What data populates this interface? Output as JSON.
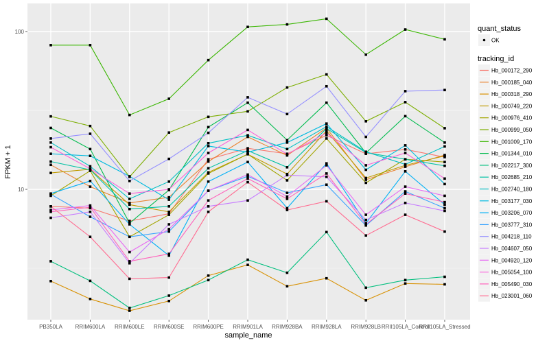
{
  "chart_data": {
    "type": "line",
    "title": "",
    "xlabel": "sample_name",
    "ylabel": "FPKM + 1",
    "yscale": "log10",
    "ylim": [
      1.45,
      140
    ],
    "yticks": [
      {
        "value": 10,
        "label": "10"
      },
      {
        "value": 100,
        "label": "100"
      }
    ],
    "grid": true,
    "categories": [
      "PB350LA",
      "RRIM600LA",
      "RRIM600LE",
      "RRIM600SE",
      "RRIM600PE",
      "RRIM901LA",
      "RRIM928BA",
      "RRIM928LA",
      "RRIM928LB",
      "RRII105LA_Control",
      "RRII105LA_Stressed"
    ],
    "legend_position": "right",
    "shape_legend": {
      "title": "quant_status",
      "items": [
        "OK"
      ]
    },
    "color_legend_title": "tracking_id",
    "series": [
      {
        "name": "Hb_000172_290",
        "color": "#F8766D",
        "values": [
          7.8,
          7.6,
          6.3,
          7.0,
          15.5,
          18.2,
          16.8,
          22.0,
          16.8,
          17.9,
          16.0
        ]
      },
      {
        "name": "Hb_000185_040",
        "color": "#EA8331",
        "values": [
          14.3,
          10.4,
          8.2,
          8.9,
          15.0,
          21.5,
          16.4,
          24.5,
          11.5,
          13.9,
          16.5
        ]
      },
      {
        "name": "Hb_000318_290",
        "color": "#D89000",
        "values": [
          2.62,
          2.02,
          1.7,
          1.96,
          2.84,
          3.32,
          2.43,
          2.73,
          1.98,
          2.53,
          2.5
        ]
      },
      {
        "name": "Hb_000749_220",
        "color": "#C09B00",
        "values": [
          12.7,
          13.4,
          8.0,
          7.2,
          12.8,
          16.7,
          12.5,
          23.5,
          11.8,
          14.2,
          16.3
        ]
      },
      {
        "name": "Hb_000976_410",
        "color": "#A3A500",
        "values": [
          9.1,
          13.1,
          5.0,
          6.9,
          12.6,
          16.7,
          11.4,
          21.0,
          11.0,
          15.5,
          14.9
        ]
      },
      {
        "name": "Hb_000999_050",
        "color": "#7CAE00",
        "values": [
          29.0,
          25.2,
          12.0,
          22.9,
          28.8,
          31.2,
          44.2,
          53.5,
          27.0,
          35.7,
          24.4
        ]
      },
      {
        "name": "Hb_001009_170",
        "color": "#39B600",
        "values": [
          82.0,
          82.0,
          29.6,
          37.5,
          65.9,
          107.0,
          111.0,
          120.5,
          71.4,
          103.0,
          89.3
        ]
      },
      {
        "name": "Hb_001344_010",
        "color": "#00BB4E",
        "values": [
          24.5,
          18.0,
          6.1,
          9.9,
          24.8,
          35.4,
          20.5,
          35.4,
          17.0,
          29.1,
          19.8
        ]
      },
      {
        "name": "Hb_002217_300",
        "color": "#00BF7D",
        "values": [
          3.5,
          2.63,
          1.77,
          2.12,
          2.66,
          3.58,
          2.96,
          5.36,
          2.38,
          2.66,
          2.79
        ]
      },
      {
        "name": "Hb_002685_210",
        "color": "#00C1A3",
        "values": [
          15.0,
          13.3,
          7.5,
          7.8,
          13.6,
          17.6,
          13.8,
          24.3,
          17.1,
          15.5,
          14.1
        ]
      },
      {
        "name": "Hb_002740_180",
        "color": "#00BFC4",
        "values": [
          19.8,
          14.0,
          8.7,
          11.2,
          19.6,
          22.0,
          18.0,
          25.0,
          17.3,
          14.4,
          18.7
        ]
      },
      {
        "name": "Hb_003177_030",
        "color": "#00BAE0",
        "values": [
          16.8,
          16.3,
          12.1,
          8.6,
          18.8,
          17.2,
          19.8,
          26.1,
          13.3,
          19.0,
          10.8
        ]
      },
      {
        "name": "Hb_003206_070",
        "color": "#00B0F6",
        "values": [
          9.4,
          11.3,
          6.0,
          3.8,
          11.2,
          14.9,
          7.6,
          14.6,
          6.1,
          13.0,
          8.0
        ]
      },
      {
        "name": "Hb_003777_310",
        "color": "#35A2FF",
        "values": [
          9.3,
          6.7,
          5.0,
          5.4,
          9.8,
          12.1,
          9.5,
          10.7,
          5.9,
          9.7,
          7.6
        ]
      },
      {
        "name": "Hb_004218_110",
        "color": "#9590FF",
        "values": [
          21.0,
          22.5,
          11.3,
          15.6,
          22.8,
          38.3,
          30.0,
          45.0,
          21.5,
          41.9,
          42.6
        ]
      },
      {
        "name": "Hb_004607_050",
        "color": "#C77CFF",
        "values": [
          6.6,
          7.2,
          3.4,
          6.0,
          7.8,
          8.5,
          12.3,
          12.0,
          6.4,
          8.2,
          7.3
        ]
      },
      {
        "name": "Hb_004920_120",
        "color": "#E76BF3",
        "values": [
          7.4,
          7.9,
          4.0,
          5.6,
          9.8,
          12.4,
          9.0,
          14.2,
          6.9,
          10.4,
          9.1
        ]
      },
      {
        "name": "Hb_005054_100",
        "color": "#FA62DB",
        "values": [
          18.5,
          13.5,
          9.4,
          10.0,
          17.0,
          23.8,
          16.7,
          22.8,
          14.2,
          17.0,
          11.7
        ]
      },
      {
        "name": "Hb_005490_030",
        "color": "#FF62BC",
        "values": [
          7.2,
          7.7,
          3.5,
          3.9,
          8.5,
          11.7,
          8.7,
          12.6,
          6.0,
          9.4,
          8.3
        ]
      },
      {
        "name": "Hb_023001_060",
        "color": "#FF6C91",
        "values": [
          7.8,
          5.0,
          2.71,
          2.76,
          7.2,
          11.1,
          7.4,
          8.4,
          5.1,
          6.9,
          5.4
        ]
      }
    ]
  }
}
